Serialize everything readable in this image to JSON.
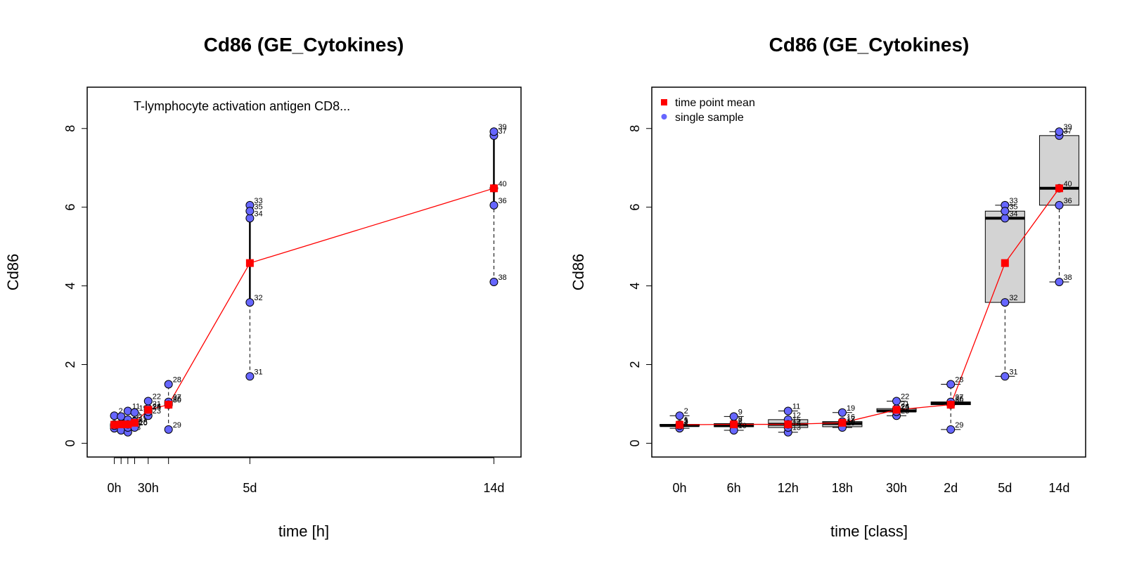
{
  "chart_data": [
    {
      "type": "scatter",
      "title": "Cd86 (GE_Cytokines)",
      "subtitle": "T-lymphocyte activation antigen CD8...",
      "xlabel": "time [h]",
      "ylabel": "Cd86",
      "xlim": [
        -24,
        360
      ],
      "ylim": [
        -0.35,
        9.05
      ],
      "x_ticks": [
        0,
        6,
        12,
        18,
        30,
        48,
        120,
        336
      ],
      "x_tick_labels": [
        "0h",
        "",
        "",
        "",
        "30h",
        "",
        "5d",
        "14d"
      ],
      "y_ticks": [
        0,
        2,
        4,
        6,
        8
      ],
      "groups": [
        {
          "x": 0,
          "mean": 0.47,
          "samples": [
            {
              "id": "1",
              "y": 0.48
            },
            {
              "id": "2",
              "y": 0.7
            },
            {
              "id": "3",
              "y": 0.44
            },
            {
              "id": "4",
              "y": 0.38
            },
            {
              "id": "5",
              "y": 0.45
            }
          ]
        },
        {
          "x": 6,
          "mean": 0.48,
          "samples": [
            {
              "id": "6",
              "y": 0.42
            },
            {
              "id": "7",
              "y": 0.45
            },
            {
              "id": "8",
              "y": 0.5
            },
            {
              "id": "9",
              "y": 0.68
            },
            {
              "id": "10",
              "y": 0.33
            }
          ]
        },
        {
          "x": 12,
          "mean": 0.48,
          "samples": [
            {
              "id": "11",
              "y": 0.82
            },
            {
              "id": "12",
              "y": 0.6
            },
            {
              "id": "13",
              "y": 0.28
            },
            {
              "id": "14",
              "y": 0.4
            },
            {
              "id": "15",
              "y": 0.48
            }
          ]
        },
        {
          "x": 18,
          "mean": 0.52,
          "samples": [
            {
              "id": "16",
              "y": 0.55
            },
            {
              "id": "17",
              "y": 0.5
            },
            {
              "id": "18",
              "y": 0.42
            },
            {
              "id": "19",
              "y": 0.78
            },
            {
              "id": "20",
              "y": 0.4
            }
          ]
        },
        {
          "x": 30,
          "mean": 0.85,
          "samples": [
            {
              "id": "21",
              "y": 0.88
            },
            {
              "id": "22",
              "y": 1.07
            },
            {
              "id": "23",
              "y": 0.7
            },
            {
              "id": "24",
              "y": 0.82
            },
            {
              "id": "25",
              "y": 0.8
            }
          ]
        },
        {
          "x": 48,
          "mean": 0.98,
          "samples": [
            {
              "id": "26",
              "y": 1.02
            },
            {
              "id": "27",
              "y": 1.05
            },
            {
              "id": "28",
              "y": 1.5
            },
            {
              "id": "29",
              "y": 0.35
            },
            {
              "id": "30",
              "y": 0.98
            }
          ]
        },
        {
          "x": 120,
          "mean": 4.58,
          "samples": [
            {
              "id": "31",
              "y": 1.7
            },
            {
              "id": "32",
              "y": 3.58
            },
            {
              "id": "33",
              "y": 6.05
            },
            {
              "id": "34",
              "y": 5.72
            },
            {
              "id": "35",
              "y": 5.9
            }
          ]
        },
        {
          "x": 336,
          "mean": 6.48,
          "samples": [
            {
              "id": "36",
              "y": 6.05
            },
            {
              "id": "37",
              "y": 7.82
            },
            {
              "id": "38",
              "y": 4.1
            },
            {
              "id": "39",
              "y": 7.92
            },
            {
              "id": "40",
              "y": 6.48
            }
          ]
        }
      ]
    },
    {
      "type": "box",
      "title": "Cd86 (GE_Cytokines)",
      "xlabel": "time [class]",
      "ylabel": "Cd86",
      "ylim": [
        -0.35,
        9.05
      ],
      "categories": [
        "0h",
        "6h",
        "12h",
        "18h",
        "30h",
        "2d",
        "5d",
        "14d"
      ],
      "y_ticks": [
        0,
        2,
        4,
        6,
        8
      ],
      "legend": {
        "position": "top-left",
        "items": [
          "time point mean",
          "single sample"
        ]
      }
    }
  ],
  "colors": {
    "mean": "#ff0000",
    "sample": "#6666ff",
    "box": "#d3d3d3"
  }
}
